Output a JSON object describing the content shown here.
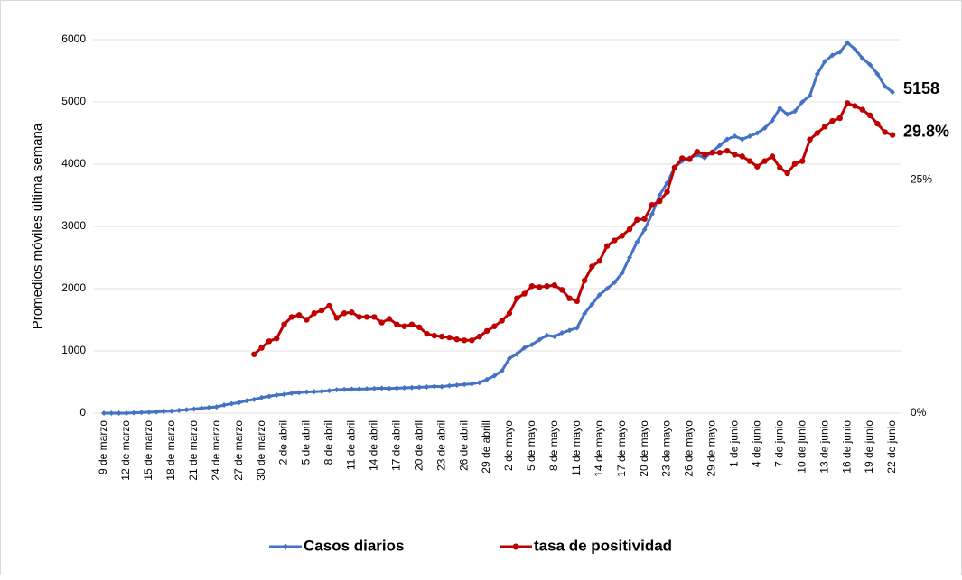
{
  "chart_data": {
    "type": "line",
    "ylabel": "Promedios móviles última semana",
    "categories": [
      "9 de marzo",
      null,
      null,
      "12 de marzo",
      null,
      null,
      "15 de marzo",
      null,
      null,
      "18 de marzo",
      null,
      null,
      "21 de marzo",
      null,
      null,
      "24 de marzo",
      null,
      null,
      "27 de marzo",
      null,
      null,
      "30 de marzo",
      null,
      null,
      "2 de abril",
      null,
      null,
      "5 de abril",
      null,
      null,
      "8 de abril",
      null,
      null,
      "11 de abril",
      null,
      null,
      "14 de abril",
      null,
      null,
      "17 de abril",
      null,
      null,
      "20 de abril",
      null,
      null,
      "23 de abril",
      null,
      null,
      "26 de abril",
      null,
      null,
      "29 de abrill",
      null,
      null,
      "2 de mayo",
      null,
      null,
      "5 de mayo",
      null,
      null,
      "8 de mayo",
      null,
      null,
      "11 de mayo",
      null,
      null,
      "14 de mayo",
      null,
      null,
      "17 de mayo",
      null,
      null,
      "20 de mayo",
      null,
      null,
      "23 de mayo",
      null,
      null,
      "26 de mayo",
      null,
      null,
      "29 de mayo",
      null,
      null,
      "1 de junio",
      null,
      null,
      "4 de junio",
      null,
      null,
      "7 de junio",
      null,
      null,
      "10 de junio",
      null,
      null,
      "13 de junio",
      null,
      null,
      "16 de junio",
      null,
      null,
      "19 de junio",
      null,
      null,
      "22 de junio"
    ],
    "series": [
      {
        "name": "Casos diarios",
        "color": "#4472c4",
        "values": [
          0,
          0,
          0,
          0,
          5,
          10,
          15,
          20,
          30,
          35,
          45,
          55,
          65,
          80,
          90,
          100,
          130,
          150,
          170,
          200,
          220,
          250,
          270,
          290,
          300,
          320,
          330,
          340,
          345,
          350,
          360,
          375,
          380,
          385,
          385,
          390,
          395,
          400,
          395,
          400,
          405,
          410,
          415,
          420,
          430,
          425,
          440,
          450,
          460,
          470,
          490,
          540,
          600,
          680,
          880,
          950,
          1050,
          1100,
          1180,
          1250,
          1230,
          1290,
          1330,
          1370,
          1600,
          1750,
          1900,
          2000,
          2100,
          2250,
          2500,
          2750,
          2950,
          3200,
          3500,
          3700,
          3950,
          4050,
          4100,
          4150,
          4100,
          4200,
          4300,
          4400,
          4450,
          4400,
          4450,
          4500,
          4580,
          4700,
          4900,
          4800,
          4850,
          5000,
          5100,
          5450,
          5650,
          5750,
          5800,
          5950,
          5850,
          5700,
          5600,
          5450,
          5250,
          5158
        ],
        "value_labels": [
          null,
          null,
          null,
          null,
          null,
          null,
          null,
          null,
          null,
          null,
          null,
          null,
          null,
          null,
          null,
          null,
          null,
          null,
          null,
          null,
          null,
          null,
          null,
          null,
          null,
          null,
          null,
          null,
          null,
          null,
          null,
          null,
          null,
          null,
          null,
          null,
          null,
          null,
          null,
          null,
          null,
          null,
          null,
          null,
          null,
          null,
          null,
          null,
          null,
          null,
          null,
          null,
          null,
          null,
          null,
          null,
          null,
          null,
          null,
          null,
          null,
          null,
          null,
          null,
          null,
          null,
          null,
          null,
          null,
          null,
          null,
          null,
          null,
          null,
          null,
          null,
          null,
          null,
          null,
          null,
          null,
          null,
          null,
          null,
          null,
          null,
          null,
          null,
          null,
          null,
          null,
          null,
          null,
          null,
          null,
          null,
          null,
          null,
          null,
          null,
          null,
          null,
          null,
          null,
          null,
          "5158"
        ]
      },
      {
        "name": "tasa de positividad",
        "color": "#c00000",
        "axis": "y2",
        "values": [
          null,
          null,
          null,
          null,
          null,
          null,
          null,
          null,
          null,
          null,
          null,
          null,
          null,
          null,
          null,
          null,
          null,
          null,
          null,
          null,
          6.3,
          7.0,
          7.7,
          8.0,
          9.5,
          10.3,
          10.5,
          10.0,
          10.7,
          11.0,
          11.5,
          10.2,
          10.7,
          10.8,
          10.3,
          10.3,
          10.3,
          9.7,
          10.1,
          9.5,
          9.3,
          9.5,
          9.2,
          8.5,
          8.3,
          8.2,
          8.1,
          7.9,
          7.8,
          7.8,
          8.2,
          8.8,
          9.3,
          9.9,
          10.7,
          12.3,
          12.8,
          13.6,
          13.5,
          13.6,
          13.7,
          13.2,
          12.3,
          12.0,
          14.2,
          15.7,
          16.3,
          17.9,
          18.5,
          19.0,
          19.7,
          20.7,
          20.8,
          22.3,
          22.7,
          23.7,
          26.3,
          27.3,
          27.2,
          28.0,
          27.7,
          27.9,
          27.9,
          28.1,
          27.7,
          27.5,
          27.0,
          26.4,
          27.0,
          27.5,
          26.3,
          25.7,
          26.7,
          27.0,
          29.3,
          30.0,
          30.7,
          31.3,
          31.6,
          33.2,
          32.9,
          32.5,
          31.9,
          31.0,
          30.1,
          29.8
        ],
        "value_labels": [
          null,
          null,
          null,
          null,
          null,
          null,
          null,
          null,
          null,
          null,
          null,
          null,
          null,
          null,
          null,
          null,
          null,
          null,
          null,
          null,
          null,
          null,
          null,
          null,
          null,
          null,
          null,
          null,
          null,
          null,
          null,
          null,
          null,
          null,
          null,
          null,
          null,
          null,
          null,
          null,
          null,
          null,
          null,
          null,
          null,
          null,
          null,
          null,
          null,
          null,
          null,
          null,
          null,
          null,
          null,
          null,
          null,
          null,
          null,
          null,
          null,
          null,
          null,
          null,
          null,
          null,
          null,
          null,
          null,
          null,
          null,
          null,
          null,
          null,
          null,
          null,
          null,
          null,
          null,
          null,
          null,
          null,
          null,
          null,
          null,
          null,
          null,
          null,
          null,
          null,
          null,
          null,
          null,
          null,
          null,
          null,
          null,
          null,
          null,
          null,
          null,
          null,
          null,
          null,
          null,
          "29.8%"
        ]
      }
    ],
    "ylim": [
      0,
      6000
    ],
    "yticks": [
      0,
      1000,
      2000,
      3000,
      4000,
      5000,
      6000
    ],
    "y2lim": [
      0,
      40
    ],
    "y2ticks": [
      {
        "value": 0,
        "label": "0%"
      },
      {
        "value": 25,
        "label": "25%"
      }
    ],
    "grid": true,
    "legend": "bottom"
  }
}
